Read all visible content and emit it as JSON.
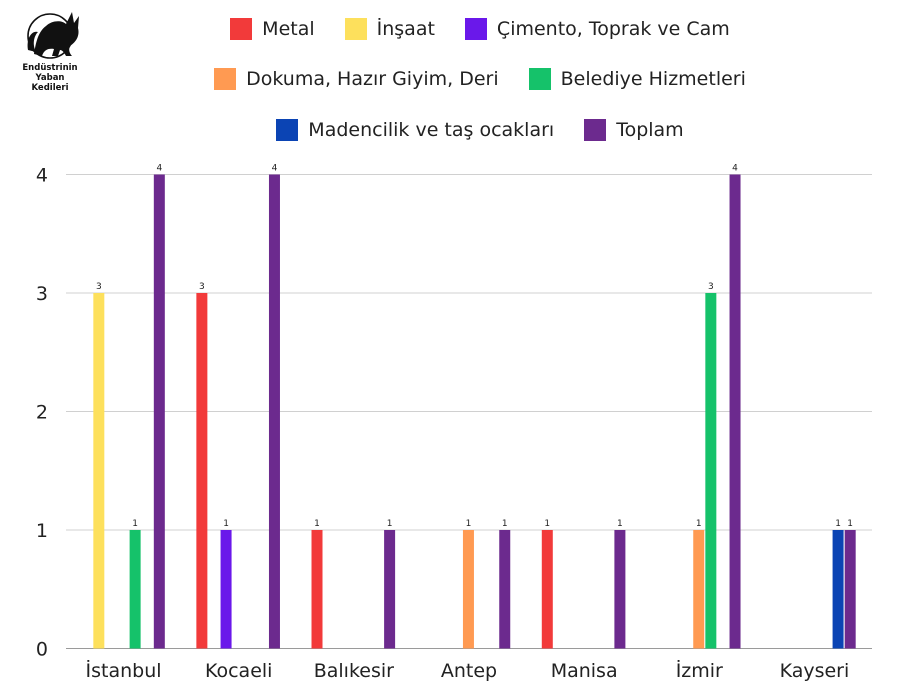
{
  "logo": {
    "lines": [
      "Endüstrinin",
      "Yaban",
      "Kedileri"
    ]
  },
  "chart_data": {
    "type": "bar",
    "categories": [
      "İstanbul",
      "Kocaeli",
      "Balıkesir",
      "Antep",
      "Manisa",
      "İzmir",
      "Kayseri"
    ],
    "series": [
      {
        "name": "Metal",
        "color": "#f23a3a",
        "values": [
          0,
          3,
          1,
          0,
          1,
          0,
          0
        ]
      },
      {
        "name": "İnşaat",
        "color": "#fde05c",
        "values": [
          3,
          0,
          0,
          0,
          0,
          0,
          0
        ]
      },
      {
        "name": "Çimento, Toprak ve Cam",
        "color": "#6a18ea",
        "values": [
          0,
          1,
          0,
          0,
          0,
          0,
          0
        ]
      },
      {
        "name": "Dokuma, Hazır Giyim, Deri",
        "color": "#ff9a52",
        "values": [
          0,
          0,
          0,
          1,
          0,
          1,
          0
        ]
      },
      {
        "name": "Belediye Hizmetleri",
        "color": "#15c26a",
        "values": [
          1,
          0,
          0,
          0,
          0,
          3,
          0
        ]
      },
      {
        "name": "Madencilik ve taş ocakları",
        "color": "#0b44b4",
        "values": [
          0,
          0,
          0,
          0,
          0,
          0,
          1
        ]
      },
      {
        "name": "Toplam",
        "color": "#6c2a8e",
        "values": [
          4,
          4,
          1,
          1,
          1,
          4,
          1
        ]
      }
    ],
    "yticks": [
      "0",
      "1",
      "2",
      "3",
      "4"
    ],
    "ylim": [
      0,
      4
    ],
    "grid": true,
    "legend_position": "top"
  }
}
